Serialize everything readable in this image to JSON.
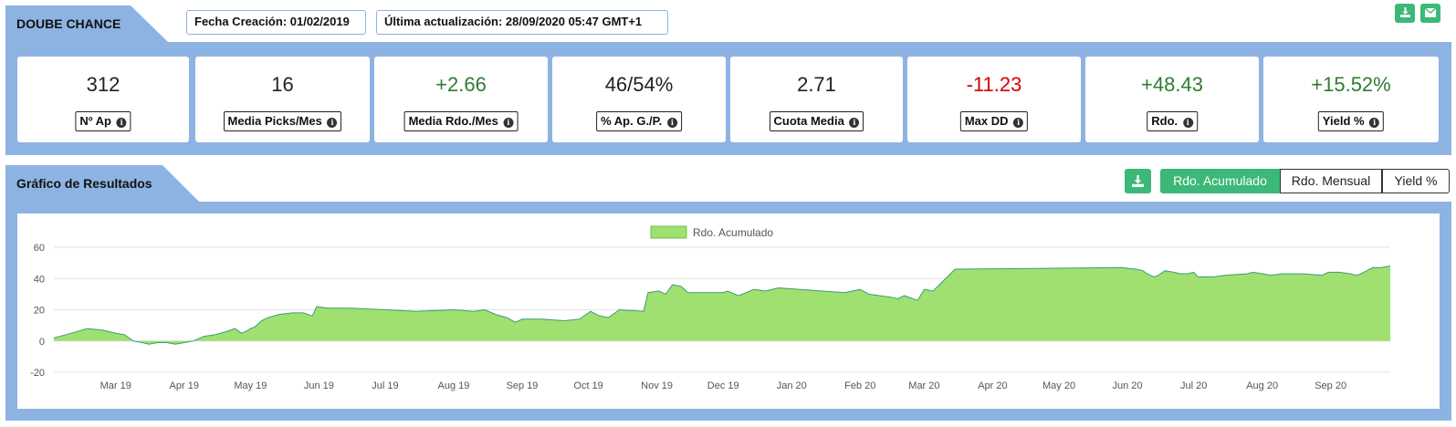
{
  "header": {
    "title": "DOUBE CHANCE",
    "created": "Fecha Creación: 01/02/2019",
    "updated": "Última actualización: 28/09/2020 05:47 GMT+1",
    "download_icon": "download-icon",
    "mail_icon": "envelope-icon"
  },
  "stats": [
    {
      "value": "312",
      "label": "Nº Ap",
      "tone": "neutral"
    },
    {
      "value": "16",
      "label": "Media Picks/Mes",
      "tone": "neutral"
    },
    {
      "value": "+2.66",
      "label": "Media Rdo./Mes",
      "tone": "positive"
    },
    {
      "value": "46/54%",
      "label": "% Ap. G./P.",
      "tone": "neutral"
    },
    {
      "value": "2.71",
      "label": "Cuota Media",
      "tone": "neutral"
    },
    {
      "value": "-11.23",
      "label": "Max DD",
      "tone": "negative"
    },
    {
      "value": "+48.43",
      "label": "Rdo.",
      "tone": "positive"
    },
    {
      "value": "+15.52%",
      "label": "Yield %",
      "tone": "positive"
    }
  ],
  "chart_section": {
    "title": "Gráfico de Resultados",
    "buttons": [
      "Rdo. Acumulado",
      "Rdo. Mensual",
      "Yield %"
    ],
    "active_button": "Rdo. Acumulado"
  },
  "colors": {
    "accent": "#3cb878",
    "section_bg": "#8db3e2",
    "area_fill": "#a0e070",
    "area_line": "#3a9e74",
    "positive": "#2e7d32",
    "negative": "#d50000"
  },
  "chart_data": {
    "type": "area",
    "legend": "Rdo. Acumulado",
    "legend_position": "top-center",
    "grid": true,
    "ylim": [
      -20,
      60
    ],
    "yticks": [
      60,
      40,
      20,
      0,
      -20
    ],
    "xlim": [
      "2019-02-01",
      "2020-09-28"
    ],
    "x_ticks": [
      {
        "label": "Mar 19",
        "date": "2019-03-01"
      },
      {
        "label": "Apr 19",
        "date": "2019-04-01"
      },
      {
        "label": "May 19",
        "date": "2019-05-01"
      },
      {
        "label": "Jun 19",
        "date": "2019-06-01"
      },
      {
        "label": "Jul 19",
        "date": "2019-07-01"
      },
      {
        "label": "Aug 19",
        "date": "2019-08-01"
      },
      {
        "label": "Sep 19",
        "date": "2019-09-01"
      },
      {
        "label": "Oct 19",
        "date": "2019-10-01"
      },
      {
        "label": "Nov 19",
        "date": "2019-11-01"
      },
      {
        "label": "Dec 19",
        "date": "2019-12-01"
      },
      {
        "label": "Jan 20",
        "date": "2020-01-01"
      },
      {
        "label": "Feb 20",
        "date": "2020-02-01"
      },
      {
        "label": "Mar 20",
        "date": "2020-03-01"
      },
      {
        "label": "Apr 20",
        "date": "2020-04-01"
      },
      {
        "label": "May 20",
        "date": "2020-05-01"
      },
      {
        "label": "Jun 20",
        "date": "2020-06-01"
      },
      {
        "label": "Jul 20",
        "date": "2020-07-01"
      },
      {
        "label": "Aug 20",
        "date": "2020-08-01"
      },
      {
        "label": "Sep 20",
        "date": "2020-09-01"
      }
    ],
    "x": [
      "2019-02-01",
      "2019-02-09",
      "2019-02-16",
      "2019-02-23",
      "2019-03-01",
      "2019-03-05",
      "2019-03-09",
      "2019-03-13",
      "2019-03-16",
      "2019-03-20",
      "2019-03-24",
      "2019-03-28",
      "2019-04-01",
      "2019-04-05",
      "2019-04-10",
      "2019-04-15",
      "2019-04-20",
      "2019-04-24",
      "2019-04-27",
      "2019-04-30",
      "2019-05-01",
      "2019-05-03",
      "2019-05-06",
      "2019-05-09",
      "2019-05-14",
      "2019-05-20",
      "2019-05-25",
      "2019-05-29",
      "2019-05-31",
      "2019-06-05",
      "2019-06-15",
      "2019-07-01",
      "2019-07-15",
      "2019-08-01",
      "2019-08-10",
      "2019-08-15",
      "2019-08-20",
      "2019-08-25",
      "2019-08-29",
      "2019-09-01",
      "2019-09-10",
      "2019-09-20",
      "2019-09-27",
      "2019-10-02",
      "2019-10-06",
      "2019-10-10",
      "2019-10-15",
      "2019-10-26",
      "2019-10-28",
      "2019-11-02",
      "2019-11-05",
      "2019-11-08",
      "2019-11-12",
      "2019-11-15",
      "2019-11-25",
      "2019-12-01",
      "2019-12-03",
      "2019-12-08",
      "2019-12-15",
      "2019-12-20",
      "2019-12-26",
      "2020-01-05",
      "2020-01-15",
      "2020-01-25",
      "2020-02-01",
      "2020-02-05",
      "2020-02-10",
      "2020-02-15",
      "2020-02-18",
      "2020-02-21",
      "2020-02-27",
      "2020-03-01",
      "2020-03-05",
      "2020-03-10",
      "2020-03-15",
      "2020-05-29",
      "2020-06-05",
      "2020-06-08",
      "2020-06-10",
      "2020-06-13",
      "2020-06-15",
      "2020-06-18",
      "2020-06-22",
      "2020-06-25",
      "2020-06-28",
      "2020-07-01",
      "2020-07-03",
      "2020-07-10",
      "2020-07-15",
      "2020-07-25",
      "2020-07-28",
      "2020-08-05",
      "2020-08-10",
      "2020-08-20",
      "2020-08-28",
      "2020-08-31",
      "2020-09-05",
      "2020-09-10",
      "2020-09-13",
      "2020-09-16",
      "2020-09-20",
      "2020-09-24",
      "2020-09-28"
    ],
    "y": [
      2,
      5,
      8,
      7,
      5,
      4,
      0,
      -1,
      -2,
      -1,
      -1,
      -2,
      -1,
      0,
      3,
      4,
      6,
      8,
      5,
      7,
      8,
      9,
      13,
      15,
      17,
      18,
      18,
      16,
      22,
      21,
      21,
      20,
      19,
      20,
      19,
      20,
      17,
      15,
      12,
      14,
      14,
      13,
      14,
      19,
      16,
      15,
      20,
      19,
      31,
      32,
      30,
      36,
      35,
      31,
      31,
      31,
      32,
      29,
      33,
      32,
      34,
      33,
      32,
      31,
      33,
      30,
      29,
      28,
      27,
      29,
      26,
      33,
      32,
      39,
      46,
      47,
      46,
      45,
      43,
      41,
      42,
      45,
      44,
      43,
      43,
      44,
      41,
      41,
      42,
      43,
      44,
      42,
      43,
      43,
      42,
      44,
      44,
      43,
      42,
      44,
      47,
      47,
      48
    ]
  }
}
